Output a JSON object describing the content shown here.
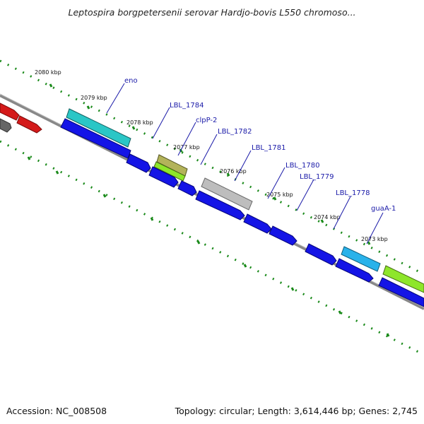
{
  "title": "Leptospira borgpetersenii serovar Hardjo-bovis L550 chromoso...",
  "footer": {
    "accession": "Accession: NC_008508",
    "topology": "Topology: circular; Length: 3,614,446 bp; Genes: 2,745"
  },
  "kbp_labels": [
    "2080 kbp",
    "2079 kbp",
    "2078 kbp",
    "2077 kbp",
    "2076 kbp",
    "2075 kbp",
    "2074 kbp",
    "2073 kbp"
  ],
  "gene_labels": [
    "eno",
    "LBL_1784",
    "clpP-2",
    "LBL_1782",
    "LBL_1781",
    "LBL_1780",
    "LBL_1779",
    "LBL_1778",
    "guaA-1"
  ],
  "colors": {
    "forward_cds": "#d41a1a",
    "reverse_cds": "#1414e6",
    "cyan_gene": "#2ac6c6",
    "olive_gene": "#b3b35a",
    "lime_gene": "#8ee62a",
    "grey_gene": "#bdbdbd",
    "sky_gene": "#29b2ea",
    "backbone": "#888888",
    "ticks": "#1a8a1a",
    "label_text": "#1a1aa8"
  }
}
